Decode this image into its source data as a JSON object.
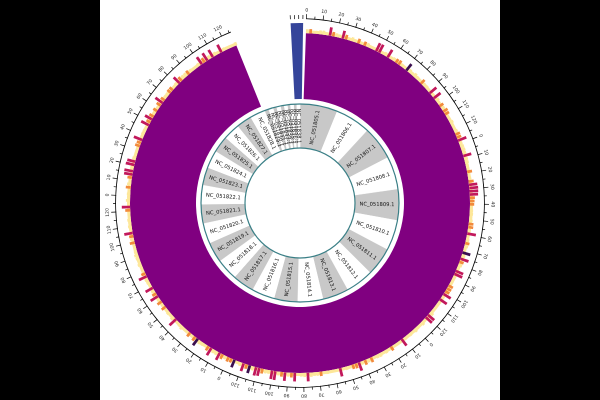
{
  "diagram": {
    "type": "circos-genome-plot",
    "sequences": [
      {
        "id": "NC_051805.1",
        "weight": 6.0
      },
      {
        "id": "NC_051806.1",
        "weight": 5.6
      },
      {
        "id": "NC_051807.1",
        "weight": 5.4
      },
      {
        "id": "NC_051808.1",
        "weight": 5.2
      },
      {
        "id": "NC_051809.1",
        "weight": 5.0
      },
      {
        "id": "NC_051810.1",
        "weight": 4.8
      },
      {
        "id": "NC_051811.1",
        "weight": 4.6
      },
      {
        "id": "NC_051812.1",
        "weight": 4.4
      },
      {
        "id": "NC_051813.1",
        "weight": 4.2
      },
      {
        "id": "NC_051814.1",
        "weight": 4.0
      },
      {
        "id": "NC_051815.1",
        "weight": 3.8
      },
      {
        "id": "NC_051816.1",
        "weight": 3.6
      },
      {
        "id": "NC_051817.1",
        "weight": 3.5
      },
      {
        "id": "NC_051818.1",
        "weight": 3.4
      },
      {
        "id": "NC_051819.1",
        "weight": 3.3
      },
      {
        "id": "NC_051820.1",
        "weight": 3.2
      },
      {
        "id": "NC_051821.1",
        "weight": 3.1
      },
      {
        "id": "NC_051822.1",
        "weight": 3.0
      },
      {
        "id": "NC_051823.1",
        "weight": 2.9
      },
      {
        "id": "NC_051824.1",
        "weight": 2.8
      },
      {
        "id": "NC_051825.1",
        "weight": 2.7
      },
      {
        "id": "NC_051826.1",
        "weight": 2.6
      },
      {
        "id": "NC_051827.1",
        "weight": 2.5
      },
      {
        "id": "NC_051828.1",
        "weight": 2.4
      },
      {
        "id": "NC_051829.1",
        "weight": 0.7
      },
      {
        "id": "NC_051830.1",
        "weight": 0.7
      },
      {
        "id": "NC_051831.1",
        "weight": 0.6
      },
      {
        "id": "NC_051832.1",
        "weight": 0.6
      },
      {
        "id": "NC_051833.1",
        "weight": 0.6
      },
      {
        "id": "NC_051834.1",
        "weight": 0.5
      },
      {
        "id": "NC_051835.1",
        "weight": 0.5
      },
      {
        "id": "NC_051836.1",
        "weight": 0.5
      },
      {
        "id": "NC_051837.1",
        "weight": 0.5
      },
      {
        "id": "NC_051838.1",
        "weight": 0.5
      }
    ],
    "tick_label_sequence": [
      "0",
      "10",
      "20",
      "30",
      "40",
      "50",
      "60",
      "70",
      "80",
      "90",
      "100",
      "110",
      "120"
    ],
    "colors": {
      "main_track": "#800080",
      "gap_track": "#35449a",
      "ideogram_shaded": "#c8c8c8",
      "ideogram_plain": "#ffffff",
      "ideogram_border": "#3a7f86",
      "heat_low": "#fde79a",
      "heat_mid": "#f28a3c",
      "heat_high": "#c2185b",
      "heat_max": "#3b0f4f",
      "side_background": "#000000",
      "panel_background": "#ffffff"
    }
  }
}
